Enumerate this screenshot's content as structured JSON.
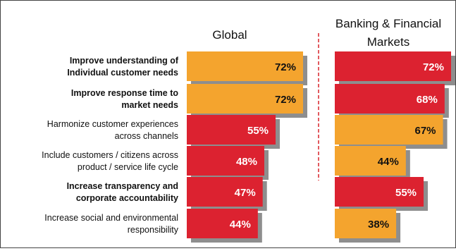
{
  "chart_data": {
    "type": "bar",
    "orientation": "horizontal",
    "categories": [
      "Improve understanding of Individual customer needs",
      "Improve response time to market needs",
      "Harmonize customer experiences across channels",
      "Include customers / citizens across product / service life cycle",
      "Increase transparency and corporate accountability",
      "Increase social and environmental responsibility"
    ],
    "category_lines": [
      [
        "Improve understanding of",
        "Individual  customer needs"
      ],
      [
        "Improve response time to",
        "market needs"
      ],
      [
        "Harmonize customer experiences",
        "across channels"
      ],
      [
        "Include customers / citizens across",
        "product / service life cycle"
      ],
      [
        "Increase transparency and",
        "corporate accountability"
      ],
      [
        "Increase social and environmental",
        "responsibility"
      ]
    ],
    "category_bold": [
      true,
      true,
      false,
      false,
      true,
      false
    ],
    "value_unit": "%",
    "xlim": [
      0,
      100
    ],
    "panels": [
      {
        "name": "Global",
        "title_lines": [
          "Global"
        ],
        "values": [
          72,
          72,
          55,
          48,
          47,
          44
        ],
        "colors": [
          "#F4A42E",
          "#F4A42E",
          "#DC2230",
          "#DC2230",
          "#DC2230",
          "#DC2230"
        ]
      },
      {
        "name": "Banking & Financial Markets",
        "title_lines": [
          "Banking & Financial",
          "Markets"
        ],
        "values": [
          72,
          68,
          67,
          44,
          55,
          38
        ],
        "colors": [
          "#DC2230",
          "#DC2230",
          "#F4A42E",
          "#F4A42E",
          "#DC2230",
          "#F4A42E"
        ]
      }
    ],
    "colors": {
      "orange": "#F4A42E",
      "red": "#DC2230",
      "shadow": "#8E8E8E",
      "divider": "#D8232A"
    }
  }
}
